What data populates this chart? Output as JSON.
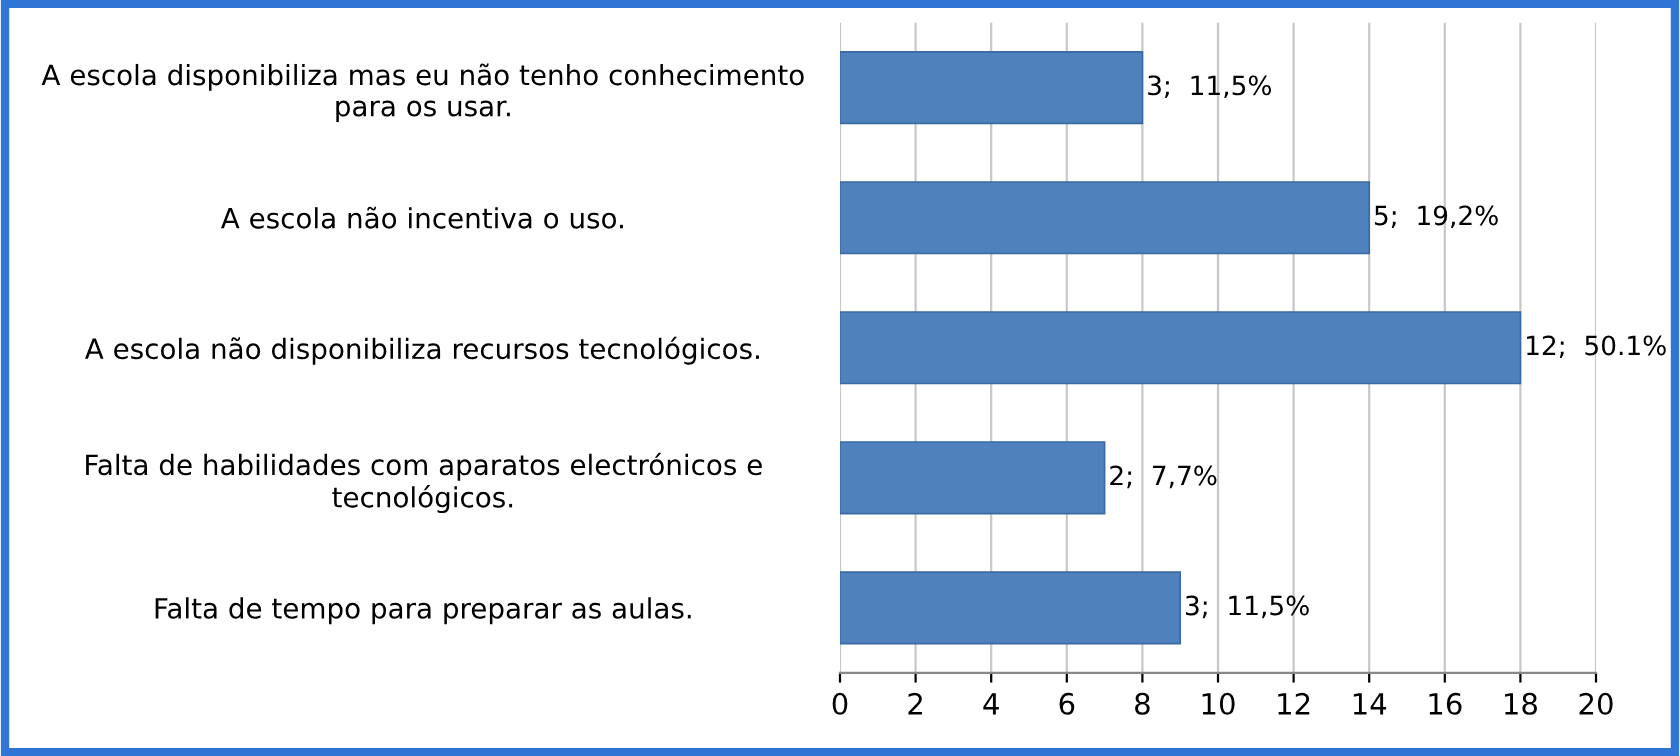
{
  "chart_data": {
    "type": "bar",
    "orientation": "horizontal",
    "categories": [
      "A escola disponibiliza mas eu não tenho conhecimento\npara os usar.",
      "A escola não incentiva o uso.",
      "A escola não disponibiliza recursos tecnológicos.",
      "Falta de habilidades com aparatos electrónicos e\ntecnológicos.",
      "Falta de tempo para preparar as aulas."
    ],
    "values": [
      8,
      14,
      18,
      7,
      9
    ],
    "annotations": [
      {
        "text": "3;  11,5%",
        "x": 8,
        "y": "A escola disponibiliza mas eu não tenho conhecimento\npara os usar."
      },
      {
        "text": "5;  19,2%",
        "x": 14,
        "y": "A escola não incentiva o uso."
      },
      {
        "text": "12;  50.1%",
        "x": 18,
        "y": "A escola não disponibiliza recursos tecnológicos."
      },
      {
        "text": "2;  7,7%",
        "x": 7,
        "y": "Falta de habilidades com aparatos electrónicos e\ntecnológicos."
      },
      {
        "text": "3;  11,5%",
        "x": 9,
        "y": "Falta de tempo para preparar as aulas."
      }
    ],
    "color": "#4f81bd",
    "xlim": [
      0,
      20
    ],
    "xticks": [
      0,
      2,
      4,
      6,
      8,
      10,
      12,
      14,
      16,
      18,
      20
    ],
    "grid": "x",
    "legend": false
  }
}
